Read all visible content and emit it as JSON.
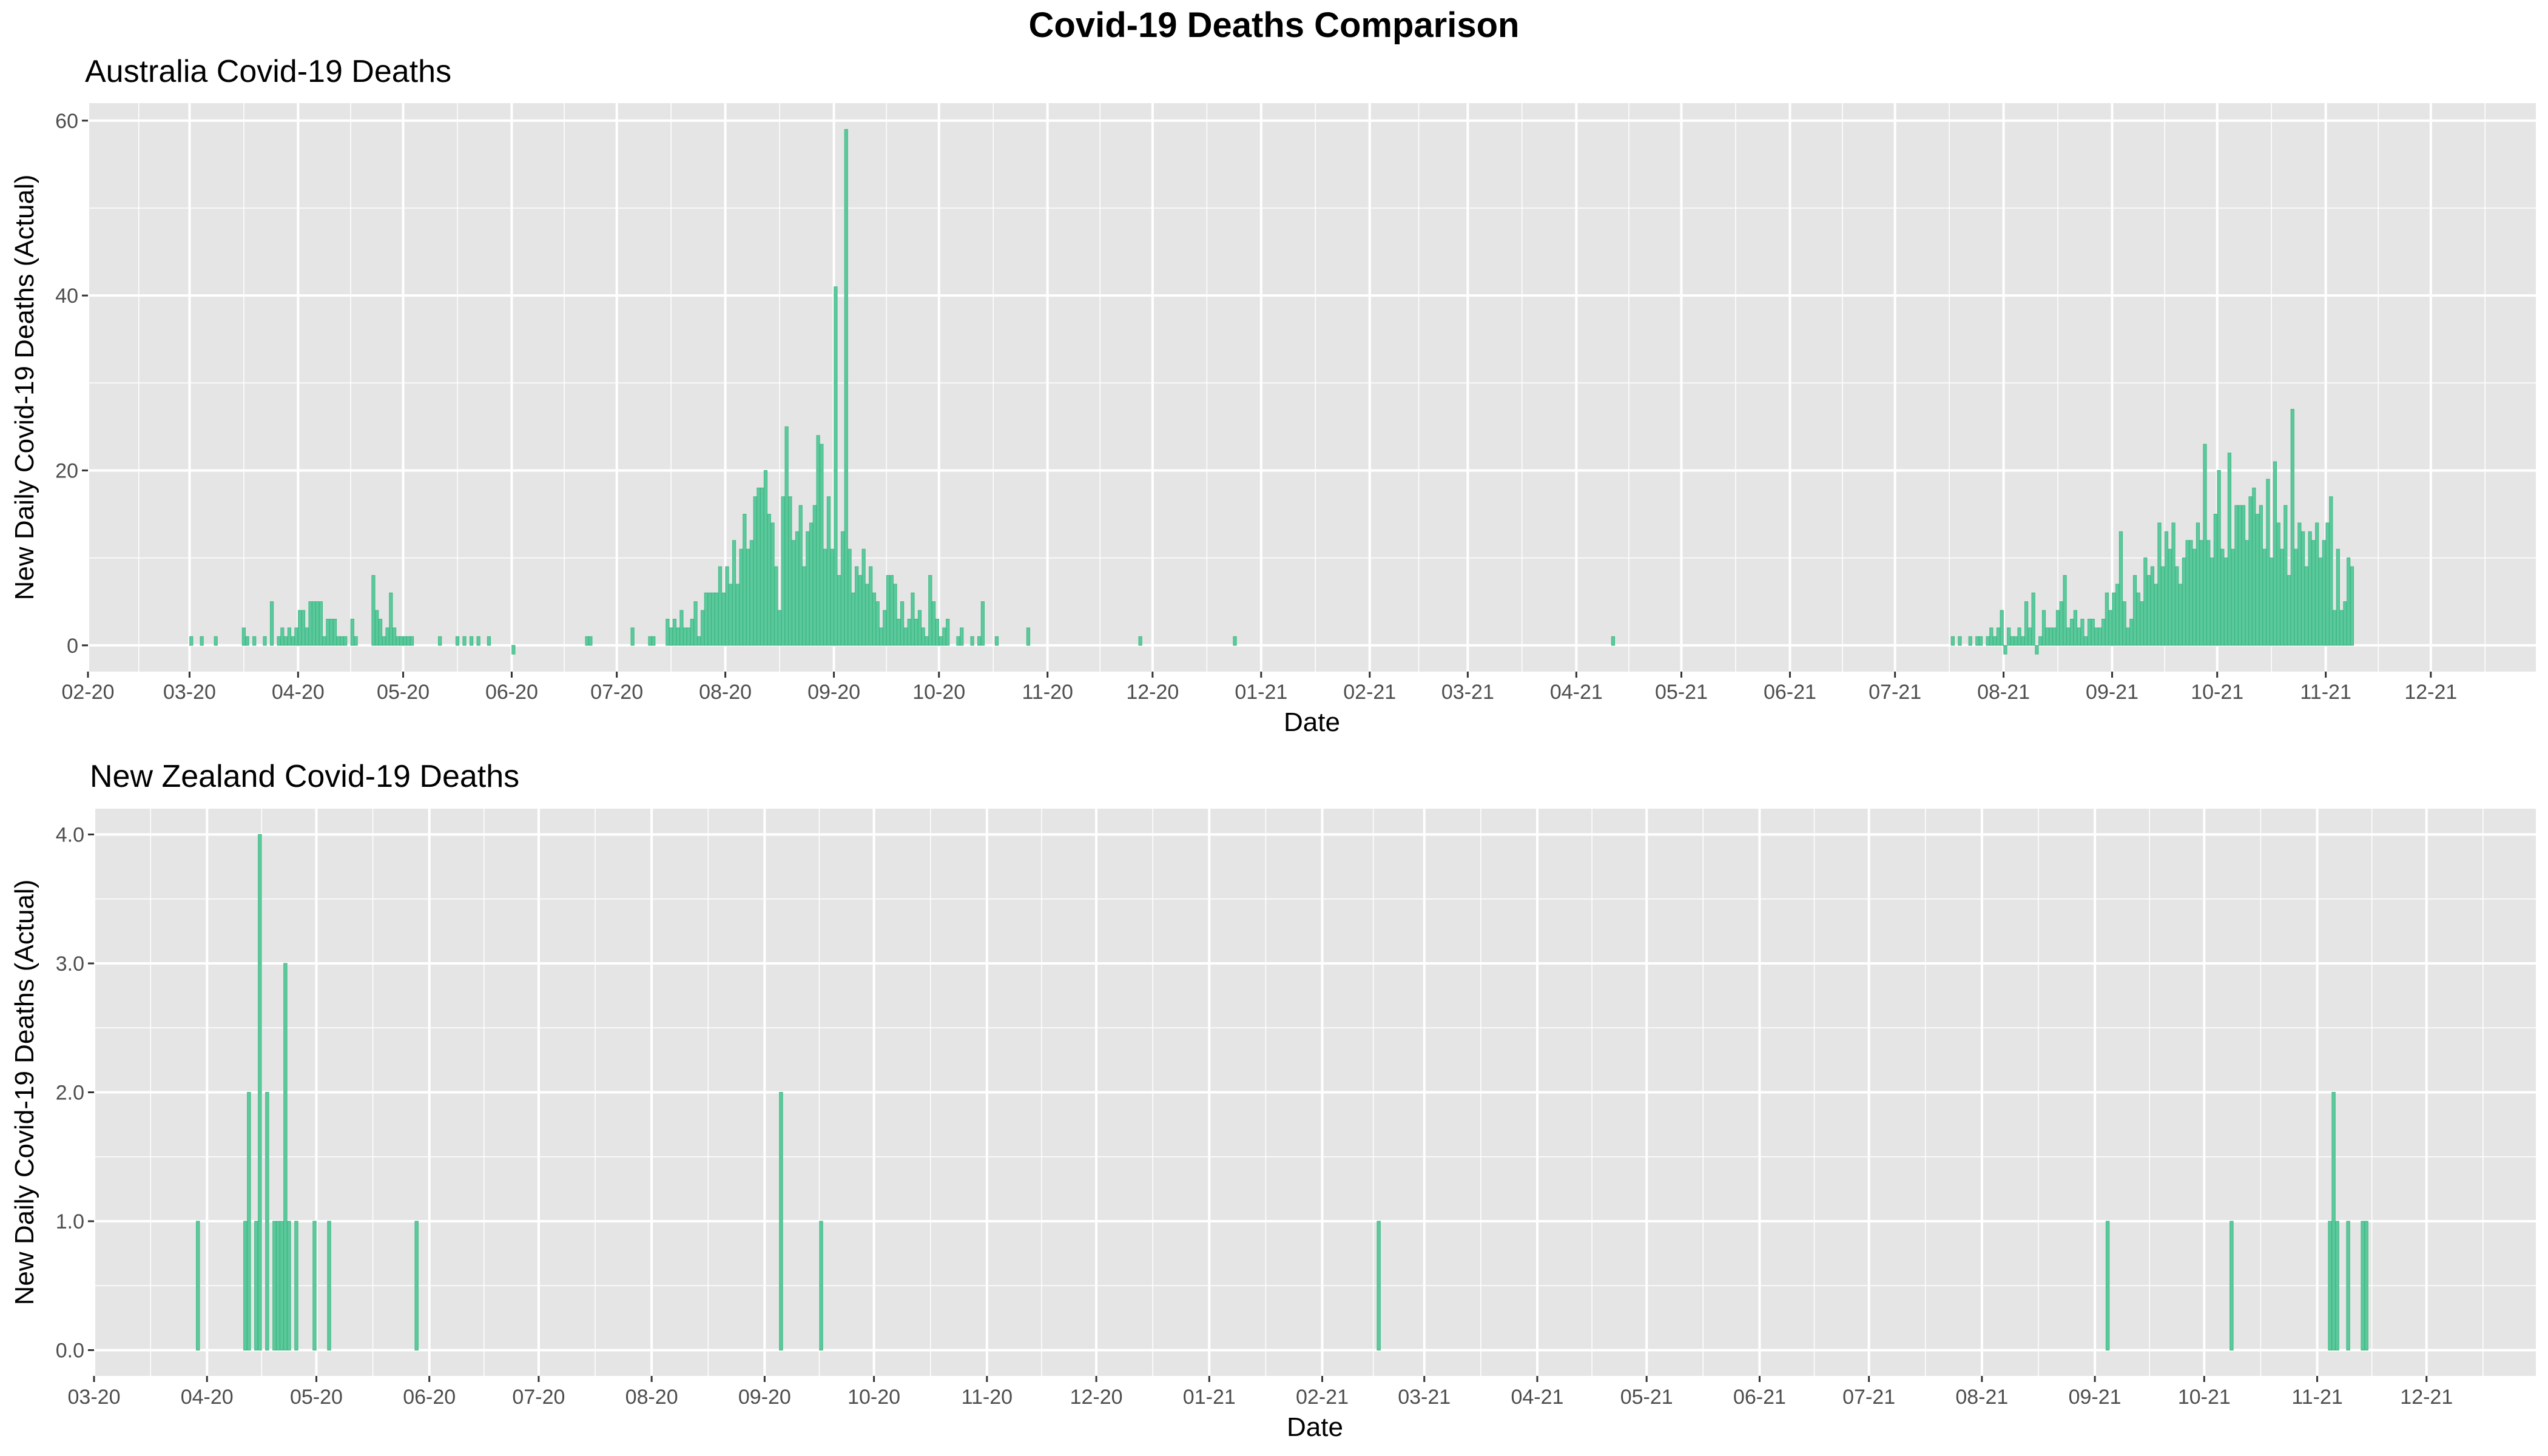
{
  "title": "Covid-19 Deaths Comparison",
  "theme": {
    "panel_bg": "#e5e5e5",
    "grid": "#ffffff",
    "bar_fill": "#5cc99c",
    "bar_stroke": "#3fb985"
  },
  "chart_data": [
    {
      "type": "bar",
      "title": "Australia Covid-19 Deaths",
      "xlabel": "Date",
      "ylabel": "New Daily Covid-19 Deaths (Actual)",
      "x_axis": "date",
      "xlim": [
        "2020-02-01",
        "2021-12-31"
      ],
      "ylim": [
        -3,
        62
      ],
      "y_ticks": [
        0,
        20,
        40,
        60
      ],
      "y_tick_labels": [
        "0",
        "20",
        "40",
        "60"
      ],
      "x_ticks": [
        "2020-02-01",
        "2020-03-01",
        "2020-04-01",
        "2020-05-01",
        "2020-06-01",
        "2020-07-01",
        "2020-08-01",
        "2020-09-01",
        "2020-10-01",
        "2020-11-01",
        "2020-12-01",
        "2021-01-01",
        "2021-02-01",
        "2021-03-01",
        "2021-04-01",
        "2021-05-01",
        "2021-06-01",
        "2021-07-01",
        "2021-08-01",
        "2021-09-01",
        "2021-10-01",
        "2021-11-01",
        "2021-12-01"
      ],
      "x_tick_labels": [
        "02-20",
        "03-20",
        "04-20",
        "05-20",
        "06-20",
        "07-20",
        "08-20",
        "09-20",
        "10-20",
        "11-20",
        "12-20",
        "01-21",
        "02-21",
        "03-21",
        "04-21",
        "05-21",
        "06-21",
        "07-21",
        "08-21",
        "09-21",
        "10-21",
        "11-21",
        "12-21"
      ],
      "data": [
        [
          "2020-03-01",
          1
        ],
        [
          "2020-03-04",
          1
        ],
        [
          "2020-03-08",
          1
        ],
        [
          "2020-03-16",
          2
        ],
        [
          "2020-03-17",
          1
        ],
        [
          "2020-03-19",
          1
        ],
        [
          "2020-03-22",
          1
        ],
        [
          "2020-03-24",
          5
        ],
        [
          "2020-03-26",
          1
        ],
        [
          "2020-03-27",
          2
        ],
        [
          "2020-03-28",
          1
        ],
        [
          "2020-03-29",
          2
        ],
        [
          "2020-03-30",
          1
        ],
        [
          "2020-03-31",
          2
        ],
        [
          "2020-04-01",
          4
        ],
        [
          "2020-04-02",
          4
        ],
        [
          "2020-04-03",
          2
        ],
        [
          "2020-04-04",
          5
        ],
        [
          "2020-04-05",
          5
        ],
        [
          "2020-04-06",
          5
        ],
        [
          "2020-04-07",
          5
        ],
        [
          "2020-04-08",
          1
        ],
        [
          "2020-04-09",
          3
        ],
        [
          "2020-04-10",
          3
        ],
        [
          "2020-04-11",
          3
        ],
        [
          "2020-04-12",
          1
        ],
        [
          "2020-04-13",
          1
        ],
        [
          "2020-04-14",
          1
        ],
        [
          "2020-04-16",
          3
        ],
        [
          "2020-04-17",
          1
        ],
        [
          "2020-04-22",
          8
        ],
        [
          "2020-04-23",
          4
        ],
        [
          "2020-04-24",
          3
        ],
        [
          "2020-04-25",
          1
        ],
        [
          "2020-04-26",
          2
        ],
        [
          "2020-04-27",
          6
        ],
        [
          "2020-04-28",
          2
        ],
        [
          "2020-04-29",
          1
        ],
        [
          "2020-04-30",
          1
        ],
        [
          "2020-05-01",
          1
        ],
        [
          "2020-05-02",
          1
        ],
        [
          "2020-05-03",
          1
        ],
        [
          "2020-05-11",
          1
        ],
        [
          "2020-05-16",
          1
        ],
        [
          "2020-05-18",
          1
        ],
        [
          "2020-05-20",
          1
        ],
        [
          "2020-05-22",
          1
        ],
        [
          "2020-05-25",
          1
        ],
        [
          "2020-06-01",
          -1
        ],
        [
          "2020-06-22",
          1
        ],
        [
          "2020-06-23",
          1
        ],
        [
          "2020-07-05",
          2
        ],
        [
          "2020-07-10",
          1
        ],
        [
          "2020-07-11",
          1
        ],
        [
          "2020-07-15",
          3
        ],
        [
          "2020-07-16",
          2
        ],
        [
          "2020-07-17",
          3
        ],
        [
          "2020-07-18",
          2
        ],
        [
          "2020-07-19",
          4
        ],
        [
          "2020-07-20",
          2
        ],
        [
          "2020-07-21",
          2
        ],
        [
          "2020-07-22",
          3
        ],
        [
          "2020-07-23",
          5
        ],
        [
          "2020-07-24",
          1
        ],
        [
          "2020-07-25",
          4
        ],
        [
          "2020-07-26",
          6
        ],
        [
          "2020-07-27",
          6
        ],
        [
          "2020-07-28",
          6
        ],
        [
          "2020-07-29",
          6
        ],
        [
          "2020-07-30",
          9
        ],
        [
          "2020-07-31",
          6
        ],
        [
          "2020-08-01",
          9
        ],
        [
          "2020-08-02",
          7
        ],
        [
          "2020-08-03",
          12
        ],
        [
          "2020-08-04",
          7
        ],
        [
          "2020-08-05",
          11
        ],
        [
          "2020-08-06",
          15
        ],
        [
          "2020-08-07",
          11
        ],
        [
          "2020-08-08",
          12
        ],
        [
          "2020-08-09",
          17
        ],
        [
          "2020-08-10",
          18
        ],
        [
          "2020-08-11",
          18
        ],
        [
          "2020-08-12",
          20
        ],
        [
          "2020-08-13",
          15
        ],
        [
          "2020-08-14",
          14
        ],
        [
          "2020-08-15",
          9
        ],
        [
          "2020-08-16",
          4
        ],
        [
          "2020-08-17",
          17
        ],
        [
          "2020-08-18",
          25
        ],
        [
          "2020-08-19",
          17
        ],
        [
          "2020-08-20",
          12
        ],
        [
          "2020-08-21",
          13
        ],
        [
          "2020-08-22",
          16
        ],
        [
          "2020-08-23",
          9
        ],
        [
          "2020-08-24",
          13
        ],
        [
          "2020-08-25",
          14
        ],
        [
          "2020-08-26",
          16
        ],
        [
          "2020-08-27",
          24
        ],
        [
          "2020-08-28",
          23
        ],
        [
          "2020-08-29",
          11
        ],
        [
          "2020-08-30",
          17
        ],
        [
          "2020-08-31",
          11
        ],
        [
          "2020-09-01",
          41
        ],
        [
          "2020-09-02",
          8
        ],
        [
          "2020-09-03",
          13
        ],
        [
          "2020-09-04",
          59
        ],
        [
          "2020-09-05",
          11
        ],
        [
          "2020-09-06",
          6
        ],
        [
          "2020-09-07",
          9
        ],
        [
          "2020-09-08",
          8
        ],
        [
          "2020-09-09",
          11
        ],
        [
          "2020-09-10",
          7
        ],
        [
          "2020-09-11",
          9
        ],
        [
          "2020-09-12",
          6
        ],
        [
          "2020-09-13",
          5
        ],
        [
          "2020-09-14",
          2
        ],
        [
          "2020-09-15",
          4
        ],
        [
          "2020-09-16",
          8
        ],
        [
          "2020-09-17",
          8
        ],
        [
          "2020-09-18",
          7
        ],
        [
          "2020-09-19",
          3
        ],
        [
          "2020-09-20",
          5
        ],
        [
          "2020-09-21",
          2
        ],
        [
          "2020-09-22",
          3
        ],
        [
          "2020-09-23",
          6
        ],
        [
          "2020-09-24",
          3
        ],
        [
          "2020-09-25",
          4
        ],
        [
          "2020-09-26",
          2
        ],
        [
          "2020-09-27",
          1
        ],
        [
          "2020-09-28",
          8
        ],
        [
          "2020-09-29",
          5
        ],
        [
          "2020-09-30",
          3
        ],
        [
          "2020-10-01",
          1
        ],
        [
          "2020-10-02",
          2
        ],
        [
          "2020-10-03",
          3
        ],
        [
          "2020-10-06",
          1
        ],
        [
          "2020-10-07",
          2
        ],
        [
          "2020-10-10",
          1
        ],
        [
          "2020-10-12",
          1
        ],
        [
          "2020-10-13",
          5
        ],
        [
          "2020-10-17",
          1
        ],
        [
          "2020-10-26",
          2
        ],
        [
          "2020-11-27",
          1
        ],
        [
          "2020-12-24",
          1
        ],
        [
          "2021-04-11",
          1
        ],
        [
          "2021-07-17",
          1
        ],
        [
          "2021-07-19",
          1
        ],
        [
          "2021-07-22",
          1
        ],
        [
          "2021-07-24",
          1
        ],
        [
          "2021-07-25",
          1
        ],
        [
          "2021-07-27",
          1
        ],
        [
          "2021-07-28",
          2
        ],
        [
          "2021-07-29",
          1
        ],
        [
          "2021-07-30",
          2
        ],
        [
          "2021-07-31",
          4
        ],
        [
          "2021-08-01",
          -1
        ],
        [
          "2021-08-02",
          2
        ],
        [
          "2021-08-03",
          1
        ],
        [
          "2021-08-04",
          1
        ],
        [
          "2021-08-05",
          2
        ],
        [
          "2021-08-06",
          1
        ],
        [
          "2021-08-07",
          5
        ],
        [
          "2021-08-08",
          2
        ],
        [
          "2021-08-09",
          6
        ],
        [
          "2021-08-10",
          -1
        ],
        [
          "2021-08-11",
          1
        ],
        [
          "2021-08-12",
          4
        ],
        [
          "2021-08-13",
          2
        ],
        [
          "2021-08-14",
          2
        ],
        [
          "2021-08-15",
          2
        ],
        [
          "2021-08-16",
          4
        ],
        [
          "2021-08-17",
          5
        ],
        [
          "2021-08-18",
          8
        ],
        [
          "2021-08-19",
          2
        ],
        [
          "2021-08-20",
          3
        ],
        [
          "2021-08-21",
          4
        ],
        [
          "2021-08-22",
          2
        ],
        [
          "2021-08-23",
          3
        ],
        [
          "2021-08-24",
          1
        ],
        [
          "2021-08-25",
          3
        ],
        [
          "2021-08-26",
          3
        ],
        [
          "2021-08-27",
          2
        ],
        [
          "2021-08-28",
          2
        ],
        [
          "2021-08-29",
          3
        ],
        [
          "2021-08-30",
          6
        ],
        [
          "2021-08-31",
          4
        ],
        [
          "2021-09-01",
          6
        ],
        [
          "2021-09-02",
          7
        ],
        [
          "2021-09-03",
          13
        ],
        [
          "2021-09-04",
          5
        ],
        [
          "2021-09-05",
          2
        ],
        [
          "2021-09-06",
          3
        ],
        [
          "2021-09-07",
          8
        ],
        [
          "2021-09-08",
          6
        ],
        [
          "2021-09-09",
          5
        ],
        [
          "2021-09-10",
          10
        ],
        [
          "2021-09-11",
          8
        ],
        [
          "2021-09-12",
          9
        ],
        [
          "2021-09-13",
          7
        ],
        [
          "2021-09-14",
          14
        ],
        [
          "2021-09-15",
          9
        ],
        [
          "2021-09-16",
          13
        ],
        [
          "2021-09-17",
          11
        ],
        [
          "2021-09-18",
          14
        ],
        [
          "2021-09-19",
          9
        ],
        [
          "2021-09-20",
          7
        ],
        [
          "2021-09-21",
          10
        ],
        [
          "2021-09-22",
          12
        ],
        [
          "2021-09-23",
          12
        ],
        [
          "2021-09-24",
          11
        ],
        [
          "2021-09-25",
          14
        ],
        [
          "2021-09-26",
          12
        ],
        [
          "2021-09-27",
          23
        ],
        [
          "2021-09-28",
          12
        ],
        [
          "2021-09-29",
          10
        ],
        [
          "2021-09-30",
          15
        ],
        [
          "2021-10-01",
          20
        ],
        [
          "2021-10-02",
          11
        ],
        [
          "2021-10-03",
          10
        ],
        [
          "2021-10-04",
          22
        ],
        [
          "2021-10-05",
          11
        ],
        [
          "2021-10-06",
          16
        ],
        [
          "2021-10-07",
          16
        ],
        [
          "2021-10-08",
          16
        ],
        [
          "2021-10-09",
          12
        ],
        [
          "2021-10-10",
          17
        ],
        [
          "2021-10-11",
          18
        ],
        [
          "2021-10-12",
          15
        ],
        [
          "2021-10-13",
          16
        ],
        [
          "2021-10-14",
          11
        ],
        [
          "2021-10-15",
          19
        ],
        [
          "2021-10-16",
          10
        ],
        [
          "2021-10-17",
          21
        ],
        [
          "2021-10-18",
          14
        ],
        [
          "2021-10-19",
          11
        ],
        [
          "2021-10-20",
          16
        ],
        [
          "2021-10-21",
          8
        ],
        [
          "2021-10-22",
          27
        ],
        [
          "2021-10-23",
          11
        ],
        [
          "2021-10-24",
          14
        ],
        [
          "2021-10-25",
          13
        ],
        [
          "2021-10-26",
          9
        ],
        [
          "2021-10-27",
          13
        ],
        [
          "2021-10-28",
          12
        ],
        [
          "2021-10-29",
          14
        ],
        [
          "2021-10-30",
          10
        ],
        [
          "2021-10-31",
          12
        ],
        [
          "2021-11-01",
          14
        ],
        [
          "2021-11-02",
          17
        ],
        [
          "2021-11-03",
          4
        ],
        [
          "2021-11-04",
          11
        ],
        [
          "2021-11-05",
          4
        ],
        [
          "2021-11-06",
          5
        ],
        [
          "2021-11-07",
          10
        ],
        [
          "2021-11-08",
          9
        ]
      ]
    },
    {
      "type": "bar",
      "title": "New Zealand Covid-19 Deaths",
      "xlabel": "Date",
      "ylabel": "New Daily Covid-19 Deaths (Actual)",
      "x_axis": "date",
      "xlim": [
        "2020-03-01",
        "2021-12-31"
      ],
      "ylim": [
        -0.2,
        4.2
      ],
      "y_ticks": [
        0,
        1,
        2,
        3,
        4
      ],
      "y_tick_labels": [
        "0.0",
        "1.0",
        "2.0",
        "3.0",
        "4.0"
      ],
      "x_ticks": [
        "2020-03-01",
        "2020-04-01",
        "2020-05-01",
        "2020-06-01",
        "2020-07-01",
        "2020-08-01",
        "2020-09-01",
        "2020-10-01",
        "2020-11-01",
        "2020-12-01",
        "2021-01-01",
        "2021-02-01",
        "2021-03-01",
        "2021-04-01",
        "2021-05-01",
        "2021-06-01",
        "2021-07-01",
        "2021-08-01",
        "2021-09-01",
        "2021-10-01",
        "2021-11-01",
        "2021-12-01"
      ],
      "x_tick_labels": [
        "03-20",
        "04-20",
        "05-20",
        "06-20",
        "07-20",
        "08-20",
        "09-20",
        "10-20",
        "11-20",
        "12-20",
        "01-21",
        "02-21",
        "03-21",
        "04-21",
        "05-21",
        "06-21",
        "07-21",
        "08-21",
        "09-21",
        "10-21",
        "11-21",
        "12-21"
      ],
      "data": [
        [
          "2020-03-29",
          1
        ],
        [
          "2020-04-11",
          1
        ],
        [
          "2020-04-12",
          2
        ],
        [
          "2020-04-14",
          1
        ],
        [
          "2020-04-15",
          4
        ],
        [
          "2020-04-17",
          2
        ],
        [
          "2020-04-19",
          1
        ],
        [
          "2020-04-20",
          1
        ],
        [
          "2020-04-21",
          1
        ],
        [
          "2020-04-22",
          3
        ],
        [
          "2020-04-23",
          1
        ],
        [
          "2020-04-25",
          1
        ],
        [
          "2020-04-30",
          1
        ],
        [
          "2020-05-04",
          1
        ],
        [
          "2020-05-28",
          1
        ],
        [
          "2020-09-05",
          2
        ],
        [
          "2020-09-16",
          1
        ],
        [
          "2021-02-16",
          1
        ],
        [
          "2021-09-04",
          1
        ],
        [
          "2021-10-08",
          1
        ],
        [
          "2021-11-04",
          1
        ],
        [
          "2021-11-05",
          2
        ],
        [
          "2021-11-06",
          1
        ],
        [
          "2021-11-09",
          1
        ],
        [
          "2021-11-13",
          1
        ],
        [
          "2021-11-14",
          1
        ]
      ]
    }
  ]
}
